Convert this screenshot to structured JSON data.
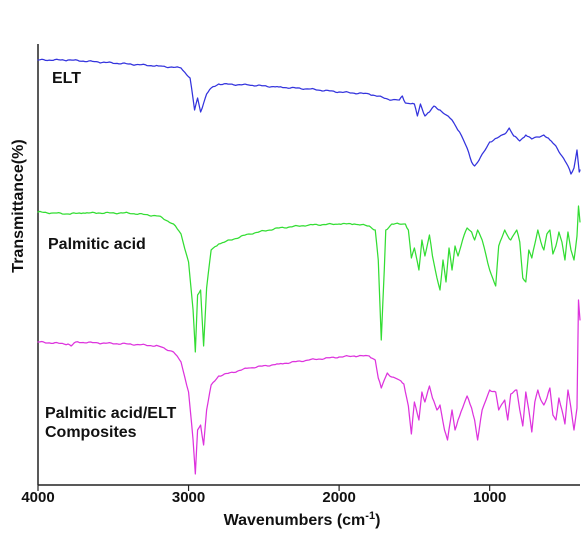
{
  "chart_data": {
    "type": "line",
    "title": "",
    "xlabel": "Wavenumbers (cm-1)",
    "ylabel": "Transmittance(%)",
    "xlim": [
      4000,
      400
    ],
    "x_ticks": [
      4000,
      3000,
      2000,
      1000
    ],
    "x_tick_labels": [
      "4000",
      "3000",
      "2000",
      "1000"
    ],
    "grid": false,
    "legend": "none",
    "y_ticks_shown": false,
    "series": [
      {
        "name": "ELT",
        "label_lines": [
          "ELT"
        ],
        "color": "#3333dd",
        "offset": 0,
        "points": [
          [
            4000,
            60
          ],
          [
            3800,
            60
          ],
          [
            3600,
            62
          ],
          [
            3400,
            64
          ],
          [
            3200,
            66
          ],
          [
            3050,
            68
          ],
          [
            2990,
            78
          ],
          [
            2960,
            110
          ],
          [
            2940,
            98
          ],
          [
            2920,
            112
          ],
          [
            2880,
            94
          ],
          [
            2850,
            88
          ],
          [
            2800,
            84
          ],
          [
            2600,
            85
          ],
          [
            2400,
            87
          ],
          [
            2200,
            89
          ],
          [
            2000,
            92
          ],
          [
            1800,
            94
          ],
          [
            1650,
            100
          ],
          [
            1600,
            100
          ],
          [
            1580,
            96
          ],
          [
            1560,
            103
          ],
          [
            1500,
            104
          ],
          [
            1480,
            116
          ],
          [
            1460,
            104
          ],
          [
            1430,
            116
          ],
          [
            1400,
            112
          ],
          [
            1370,
            106
          ],
          [
            1330,
            110
          ],
          [
            1300,
            114
          ],
          [
            1250,
            120
          ],
          [
            1200,
            132
          ],
          [
            1150,
            148
          ],
          [
            1120,
            162
          ],
          [
            1100,
            166
          ],
          [
            1070,
            160
          ],
          [
            1030,
            150
          ],
          [
            1000,
            142
          ],
          [
            950,
            138
          ],
          [
            900,
            134
          ],
          [
            870,
            128
          ],
          [
            840,
            136
          ],
          [
            800,
            141
          ],
          [
            760,
            135
          ],
          [
            720,
            139
          ],
          [
            680,
            137
          ],
          [
            640,
            135
          ],
          [
            600,
            140
          ],
          [
            560,
            146
          ],
          [
            520,
            156
          ],
          [
            480,
            166
          ],
          [
            460,
            174
          ],
          [
            440,
            168
          ],
          [
            420,
            150
          ],
          [
            405,
            172
          ],
          [
            400,
            170
          ]
        ]
      },
      {
        "name": "Palmitic acid",
        "label_lines": [
          "Palmitic acid"
        ],
        "color": "#33dd33",
        "offset": 150,
        "points": [
          [
            4000,
            62
          ],
          [
            3900,
            63
          ],
          [
            3800,
            64
          ],
          [
            3700,
            63
          ],
          [
            3600,
            63
          ],
          [
            3400,
            63
          ],
          [
            3200,
            66
          ],
          [
            3100,
            74
          ],
          [
            3050,
            84
          ],
          [
            3000,
            112
          ],
          [
            2970,
            160
          ],
          [
            2955,
            202
          ],
          [
            2940,
            145
          ],
          [
            2920,
            140
          ],
          [
            2900,
            196
          ],
          [
            2880,
            138
          ],
          [
            2850,
            100
          ],
          [
            2800,
            94
          ],
          [
            2600,
            84
          ],
          [
            2400,
            78
          ],
          [
            2200,
            75
          ],
          [
            2000,
            74
          ],
          [
            1900,
            74
          ],
          [
            1800,
            76
          ],
          [
            1760,
            80
          ],
          [
            1740,
            110
          ],
          [
            1720,
            190
          ],
          [
            1700,
            120
          ],
          [
            1690,
            80
          ],
          [
            1650,
            74
          ],
          [
            1600,
            74
          ],
          [
            1560,
            74
          ],
          [
            1540,
            80
          ],
          [
            1520,
            108
          ],
          [
            1500,
            98
          ],
          [
            1470,
            120
          ],
          [
            1450,
            90
          ],
          [
            1430,
            106
          ],
          [
            1400,
            85
          ],
          [
            1380,
            106
          ],
          [
            1350,
            128
          ],
          [
            1330,
            140
          ],
          [
            1310,
            110
          ],
          [
            1290,
            132
          ],
          [
            1270,
            98
          ],
          [
            1250,
            120
          ],
          [
            1230,
            96
          ],
          [
            1210,
            106
          ],
          [
            1180,
            90
          ],
          [
            1150,
            78
          ],
          [
            1120,
            82
          ],
          [
            1100,
            90
          ],
          [
            1080,
            80
          ],
          [
            1050,
            90
          ],
          [
            1000,
            120
          ],
          [
            960,
            136
          ],
          [
            940,
            96
          ],
          [
            900,
            80
          ],
          [
            880,
            86
          ],
          [
            860,
            90
          ],
          [
            820,
            80
          ],
          [
            800,
            92
          ],
          [
            780,
            128
          ],
          [
            760,
            132
          ],
          [
            740,
            100
          ],
          [
            720,
            108
          ],
          [
            700,
            94
          ],
          [
            680,
            80
          ],
          [
            660,
            92
          ],
          [
            640,
            100
          ],
          [
            620,
            84
          ],
          [
            600,
            80
          ],
          [
            580,
            104
          ],
          [
            560,
            96
          ],
          [
            540,
            82
          ],
          [
            520,
            92
          ],
          [
            500,
            110
          ],
          [
            480,
            82
          ],
          [
            460,
            100
          ],
          [
            440,
            110
          ],
          [
            420,
            86
          ],
          [
            410,
            56
          ],
          [
            400,
            72
          ]
        ]
      },
      {
        "name": "Palmitic acid/ELT Composites",
        "label_lines": [
          "Palmitic acid/ELT",
          "Composites"
        ],
        "color": "#dd33dd",
        "offset": 280,
        "points": [
          [
            4000,
            62
          ],
          [
            3800,
            64
          ],
          [
            3780,
            66
          ],
          [
            3750,
            62
          ],
          [
            3600,
            63
          ],
          [
            3400,
            64
          ],
          [
            3200,
            66
          ],
          [
            3100,
            72
          ],
          [
            3050,
            82
          ],
          [
            3000,
            112
          ],
          [
            2970,
            160
          ],
          [
            2955,
            194
          ],
          [
            2940,
            150
          ],
          [
            2920,
            145
          ],
          [
            2900,
            165
          ],
          [
            2880,
            130
          ],
          [
            2850,
            105
          ],
          [
            2800,
            96
          ],
          [
            2600,
            88
          ],
          [
            2400,
            84
          ],
          [
            2200,
            80
          ],
          [
            2000,
            77
          ],
          [
            1900,
            76
          ],
          [
            1800,
            76
          ],
          [
            1760,
            80
          ],
          [
            1740,
            98
          ],
          [
            1720,
            108
          ],
          [
            1700,
            100
          ],
          [
            1680,
            93
          ],
          [
            1650,
            97
          ],
          [
            1600,
            100
          ],
          [
            1570,
            104
          ],
          [
            1540,
            126
          ],
          [
            1520,
            154
          ],
          [
            1500,
            122
          ],
          [
            1470,
            140
          ],
          [
            1450,
            112
          ],
          [
            1430,
            122
          ],
          [
            1400,
            106
          ],
          [
            1380,
            118
          ],
          [
            1350,
            130
          ],
          [
            1330,
            125
          ],
          [
            1300,
            150
          ],
          [
            1280,
            160
          ],
          [
            1250,
            130
          ],
          [
            1230,
            150
          ],
          [
            1210,
            140
          ],
          [
            1180,
            128
          ],
          [
            1150,
            116
          ],
          [
            1120,
            128
          ],
          [
            1100,
            140
          ],
          [
            1080,
            160
          ],
          [
            1050,
            130
          ],
          [
            1000,
            110
          ],
          [
            960,
            112
          ],
          [
            940,
            130
          ],
          [
            900,
            120
          ],
          [
            880,
            140
          ],
          [
            860,
            114
          ],
          [
            820,
            110
          ],
          [
            800,
            130
          ],
          [
            780,
            146
          ],
          [
            760,
            112
          ],
          [
            740,
            130
          ],
          [
            720,
            152
          ],
          [
            700,
            122
          ],
          [
            680,
            110
          ],
          [
            660,
            120
          ],
          [
            640,
            125
          ],
          [
            620,
            118
          ],
          [
            600,
            108
          ],
          [
            580,
            135
          ],
          [
            560,
            140
          ],
          [
            540,
            118
          ],
          [
            520,
            130
          ],
          [
            500,
            144
          ],
          [
            480,
            110
          ],
          [
            460,
            128
          ],
          [
            440,
            150
          ],
          [
            420,
            128
          ],
          [
            410,
            20
          ],
          [
            400,
            40
          ]
        ]
      }
    ]
  }
}
